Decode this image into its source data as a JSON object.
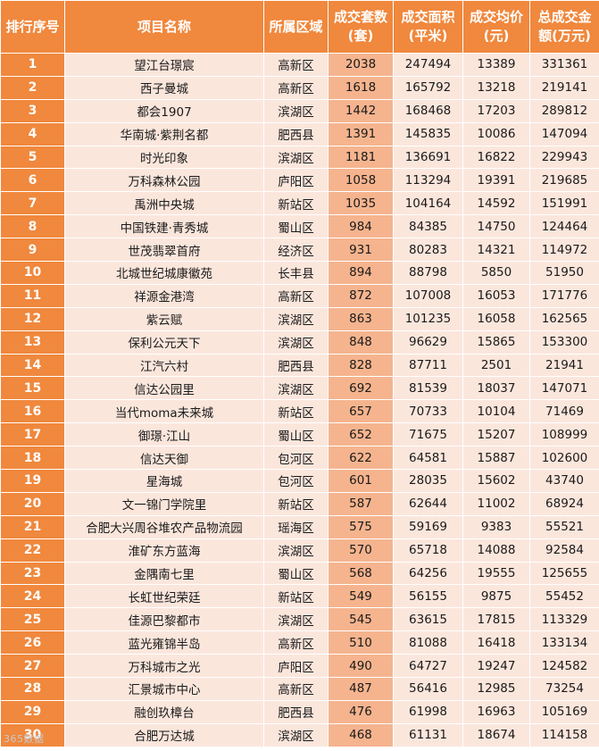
{
  "headers": [
    "排行序号",
    "项目名称",
    "所属区域",
    "成交套数\n(套)",
    "成交面积\n(平米)",
    "成交均价\n(元)",
    "总成交金\n额(万元)"
  ],
  "rows": [
    [
      "1",
      "望江台璟宸",
      "高新区",
      "2038",
      "247494",
      "13389",
      "331361"
    ],
    [
      "2",
      "西子曼城",
      "高新区",
      "1618",
      "165792",
      "13218",
      "219141"
    ],
    [
      "3",
      "都会1907",
      "滨湖区",
      "1442",
      "168468",
      "17203",
      "289812"
    ],
    [
      "4",
      "华南城·紫荆名都",
      "肥西县",
      "1391",
      "145835",
      "10086",
      "147094"
    ],
    [
      "5",
      "时光印象",
      "滨湖区",
      "1181",
      "136691",
      "16822",
      "229943"
    ],
    [
      "6",
      "万科森林公园",
      "庐阳区",
      "1058",
      "113294",
      "19391",
      "219685"
    ],
    [
      "7",
      "禹洲中央城",
      "新站区",
      "1035",
      "104164",
      "14592",
      "151991"
    ],
    [
      "8",
      "中国铁建·青秀城",
      "蜀山区",
      "984",
      "84385",
      "14750",
      "124464"
    ],
    [
      "9",
      "世茂翡翠首府",
      "经济区",
      "931",
      "80283",
      "14321",
      "114972"
    ],
    [
      "10",
      "北城世纪城康徽苑",
      "长丰县",
      "894",
      "88798",
      "5850",
      "51950"
    ],
    [
      "11",
      "祥源金港湾",
      "高新区",
      "872",
      "107008",
      "16053",
      "171776"
    ],
    [
      "12",
      "紫云赋",
      "滨湖区",
      "863",
      "101235",
      "16058",
      "162565"
    ],
    [
      "13",
      "保利公元天下",
      "滨湖区",
      "848",
      "96629",
      "15865",
      "153300"
    ],
    [
      "14",
      "江汽六村",
      "肥西县",
      "828",
      "87711",
      "2501",
      "21941"
    ],
    [
      "15",
      "信达公园里",
      "滨湖区",
      "692",
      "81539",
      "18037",
      "147071"
    ],
    [
      "16",
      "当代moma未来城",
      "新站区",
      "657",
      "70733",
      "10104",
      "71469"
    ],
    [
      "17",
      "御璟·江山",
      "蜀山区",
      "652",
      "71675",
      "15207",
      "108999"
    ],
    [
      "18",
      "信达天御",
      "包河区",
      "622",
      "64581",
      "15887",
      "102600"
    ],
    [
      "19",
      "星海城",
      "包河区",
      "601",
      "28035",
      "15602",
      "43740"
    ],
    [
      "20",
      "文一锦门学院里",
      "新站区",
      "587",
      "62644",
      "11002",
      "68924"
    ],
    [
      "21",
      "合肥大兴周谷堆农产品物流园",
      "瑶海区",
      "575",
      "59169",
      "9383",
      "55521"
    ],
    [
      "22",
      "淮矿东方蓝海",
      "滨湖区",
      "570",
      "65718",
      "14088",
      "92584"
    ],
    [
      "23",
      "金隅南七里",
      "蜀山区",
      "568",
      "64256",
      "19555",
      "125655"
    ],
    [
      "24",
      "长虹世纪荣廷",
      "新站区",
      "549",
      "56155",
      "9875",
      "55452"
    ],
    [
      "25",
      "佳源巴黎都市",
      "滨湖区",
      "545",
      "63615",
      "17815",
      "113329"
    ],
    [
      "26",
      "蓝光雍锦半岛",
      "高新区",
      "510",
      "81088",
      "16418",
      "133134"
    ],
    [
      "27",
      "万科城市之光",
      "庐阳区",
      "490",
      "64727",
      "19247",
      "124582"
    ],
    [
      "28",
      "汇景城市中心",
      "高新区",
      "487",
      "56416",
      "12985",
      "73254"
    ],
    [
      "29",
      "融创玖樟台",
      "肥西县",
      "476",
      "61998",
      "16963",
      "105169"
    ],
    [
      "30",
      "合肥万达城",
      "滨湖区",
      "468",
      "61131",
      "18674",
      "114158"
    ]
  ],
  "watermark": "365数据",
  "colors": {
    "header_bg": "#f0883d",
    "row_bg": "#fbe6dc",
    "units_bg": "#f5b48e",
    "rank_bg": "#f0883d"
  }
}
